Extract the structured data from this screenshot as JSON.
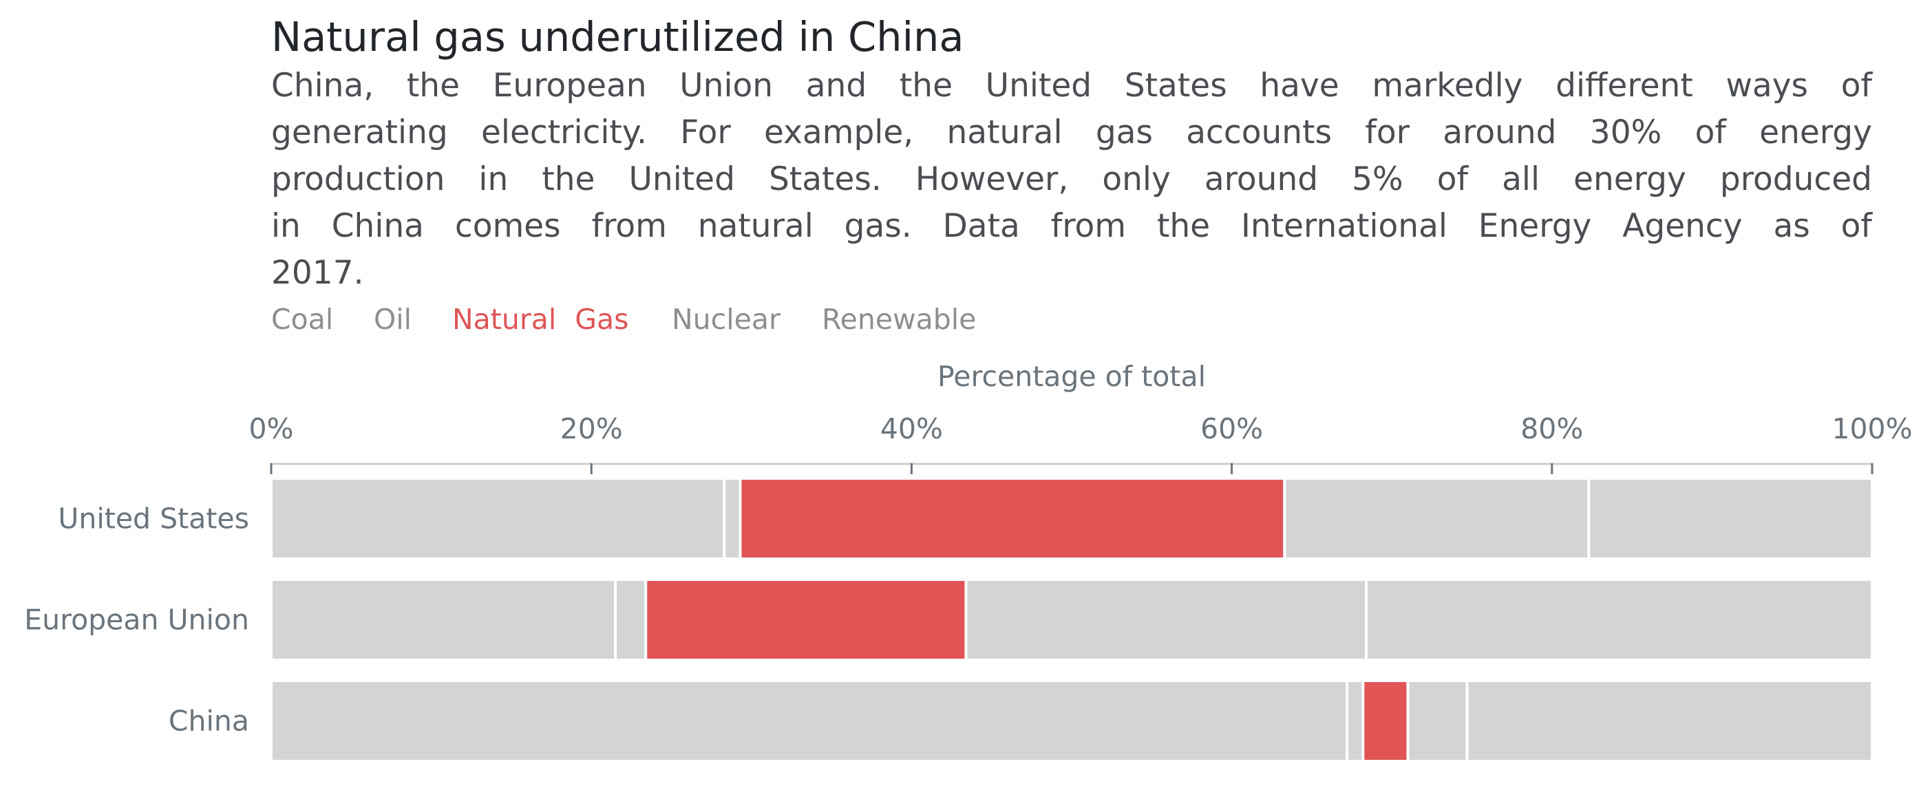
{
  "chart_data": {
    "type": "bar",
    "orientation": "horizontal",
    "stacked": true,
    "title": "Natural gas underutilized in China",
    "description_lines": [
      "China, the European Union and the United States have markedly different ways of",
      "generating electricity. For example, natural gas accounts for around 30% of energy",
      "production in the United States. However, only around 5% of all energy produced",
      "in China comes from natural gas. Data from the International Energy Agency as of",
      "2017."
    ],
    "xlabel": "Percentage of total",
    "ylabel": "",
    "xlim": [
      0,
      100
    ],
    "x_ticks": [
      "0%",
      "20%",
      "40%",
      "60%",
      "80%",
      "100%"
    ],
    "x_tick_values": [
      0,
      20,
      40,
      60,
      80,
      100
    ],
    "x_axis_position": "top",
    "grid": false,
    "legend_position": "top-left",
    "legend_items": [
      "Coal",
      "Oil",
      "Natural Gas",
      "Nuclear",
      "Renewable"
    ],
    "highlight_series": "Natural Gas",
    "categories": [
      "United States",
      "European Union",
      "China"
    ],
    "series": [
      {
        "name": "Coal",
        "values": [
          28.3,
          21.5,
          67.2
        ]
      },
      {
        "name": "Oil",
        "values": [
          1.0,
          1.9,
          1.0
        ]
      },
      {
        "name": "Natural Gas",
        "values": [
          34.0,
          20.0,
          2.8
        ]
      },
      {
        "name": "Nuclear",
        "values": [
          19.0,
          25.0,
          3.7
        ]
      },
      {
        "name": "Renewable",
        "values": [
          17.7,
          31.6,
          25.3
        ]
      }
    ]
  },
  "colors": {
    "highlight": "#e05456",
    "muted_bar": "#d3d4d6",
    "legend_muted": "#8e8e8e",
    "axis_line": "#cccccc",
    "separator": "#ffffff"
  }
}
